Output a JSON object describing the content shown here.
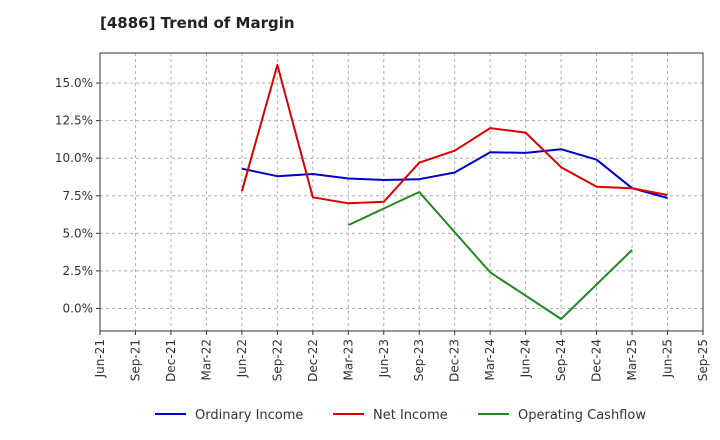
{
  "chart_data": {
    "type": "line",
    "title": "[4886]  Trend of Margin",
    "xlabel": "",
    "ylabel": "",
    "categories": [
      "Jun-21",
      "Sep-21",
      "Dec-21",
      "Mar-22",
      "Jun-22",
      "Sep-22",
      "Dec-22",
      "Mar-23",
      "Jun-23",
      "Sep-23",
      "Dec-23",
      "Mar-24",
      "Jun-24",
      "Sep-24",
      "Dec-24",
      "Mar-25",
      "Jun-25",
      "Sep-25"
    ],
    "y_ticks": [
      "0.0%",
      "2.5%",
      "5.0%",
      "7.5%",
      "10.0%",
      "12.5%",
      "15.0%"
    ],
    "y_tick_values": [
      0,
      2.5,
      5,
      7.5,
      10,
      12.5,
      15
    ],
    "ylim": [
      -1.5,
      17
    ],
    "grid": true,
    "legend_position": "bottom",
    "series": [
      {
        "name": "Ordinary Income",
        "color": "#0000cc",
        "values": [
          null,
          null,
          null,
          null,
          9.3,
          8.8,
          8.95,
          8.65,
          8.55,
          8.6,
          9.05,
          10.4,
          10.35,
          10.6,
          9.9,
          8.0,
          7.35,
          null
        ]
      },
      {
        "name": "Net Income",
        "color": "#dd0000",
        "values": [
          null,
          null,
          null,
          null,
          7.8,
          16.2,
          7.4,
          7.0,
          7.1,
          9.7,
          10.5,
          12.0,
          11.7,
          9.4,
          8.1,
          8.0,
          7.55,
          null
        ]
      },
      {
        "name": "Operating Cashflow",
        "color": "#228822",
        "values": [
          null,
          null,
          null,
          null,
          null,
          null,
          null,
          5.55,
          null,
          7.75,
          null,
          2.4,
          null,
          -0.7,
          null,
          3.9,
          null,
          null
        ]
      }
    ]
  }
}
